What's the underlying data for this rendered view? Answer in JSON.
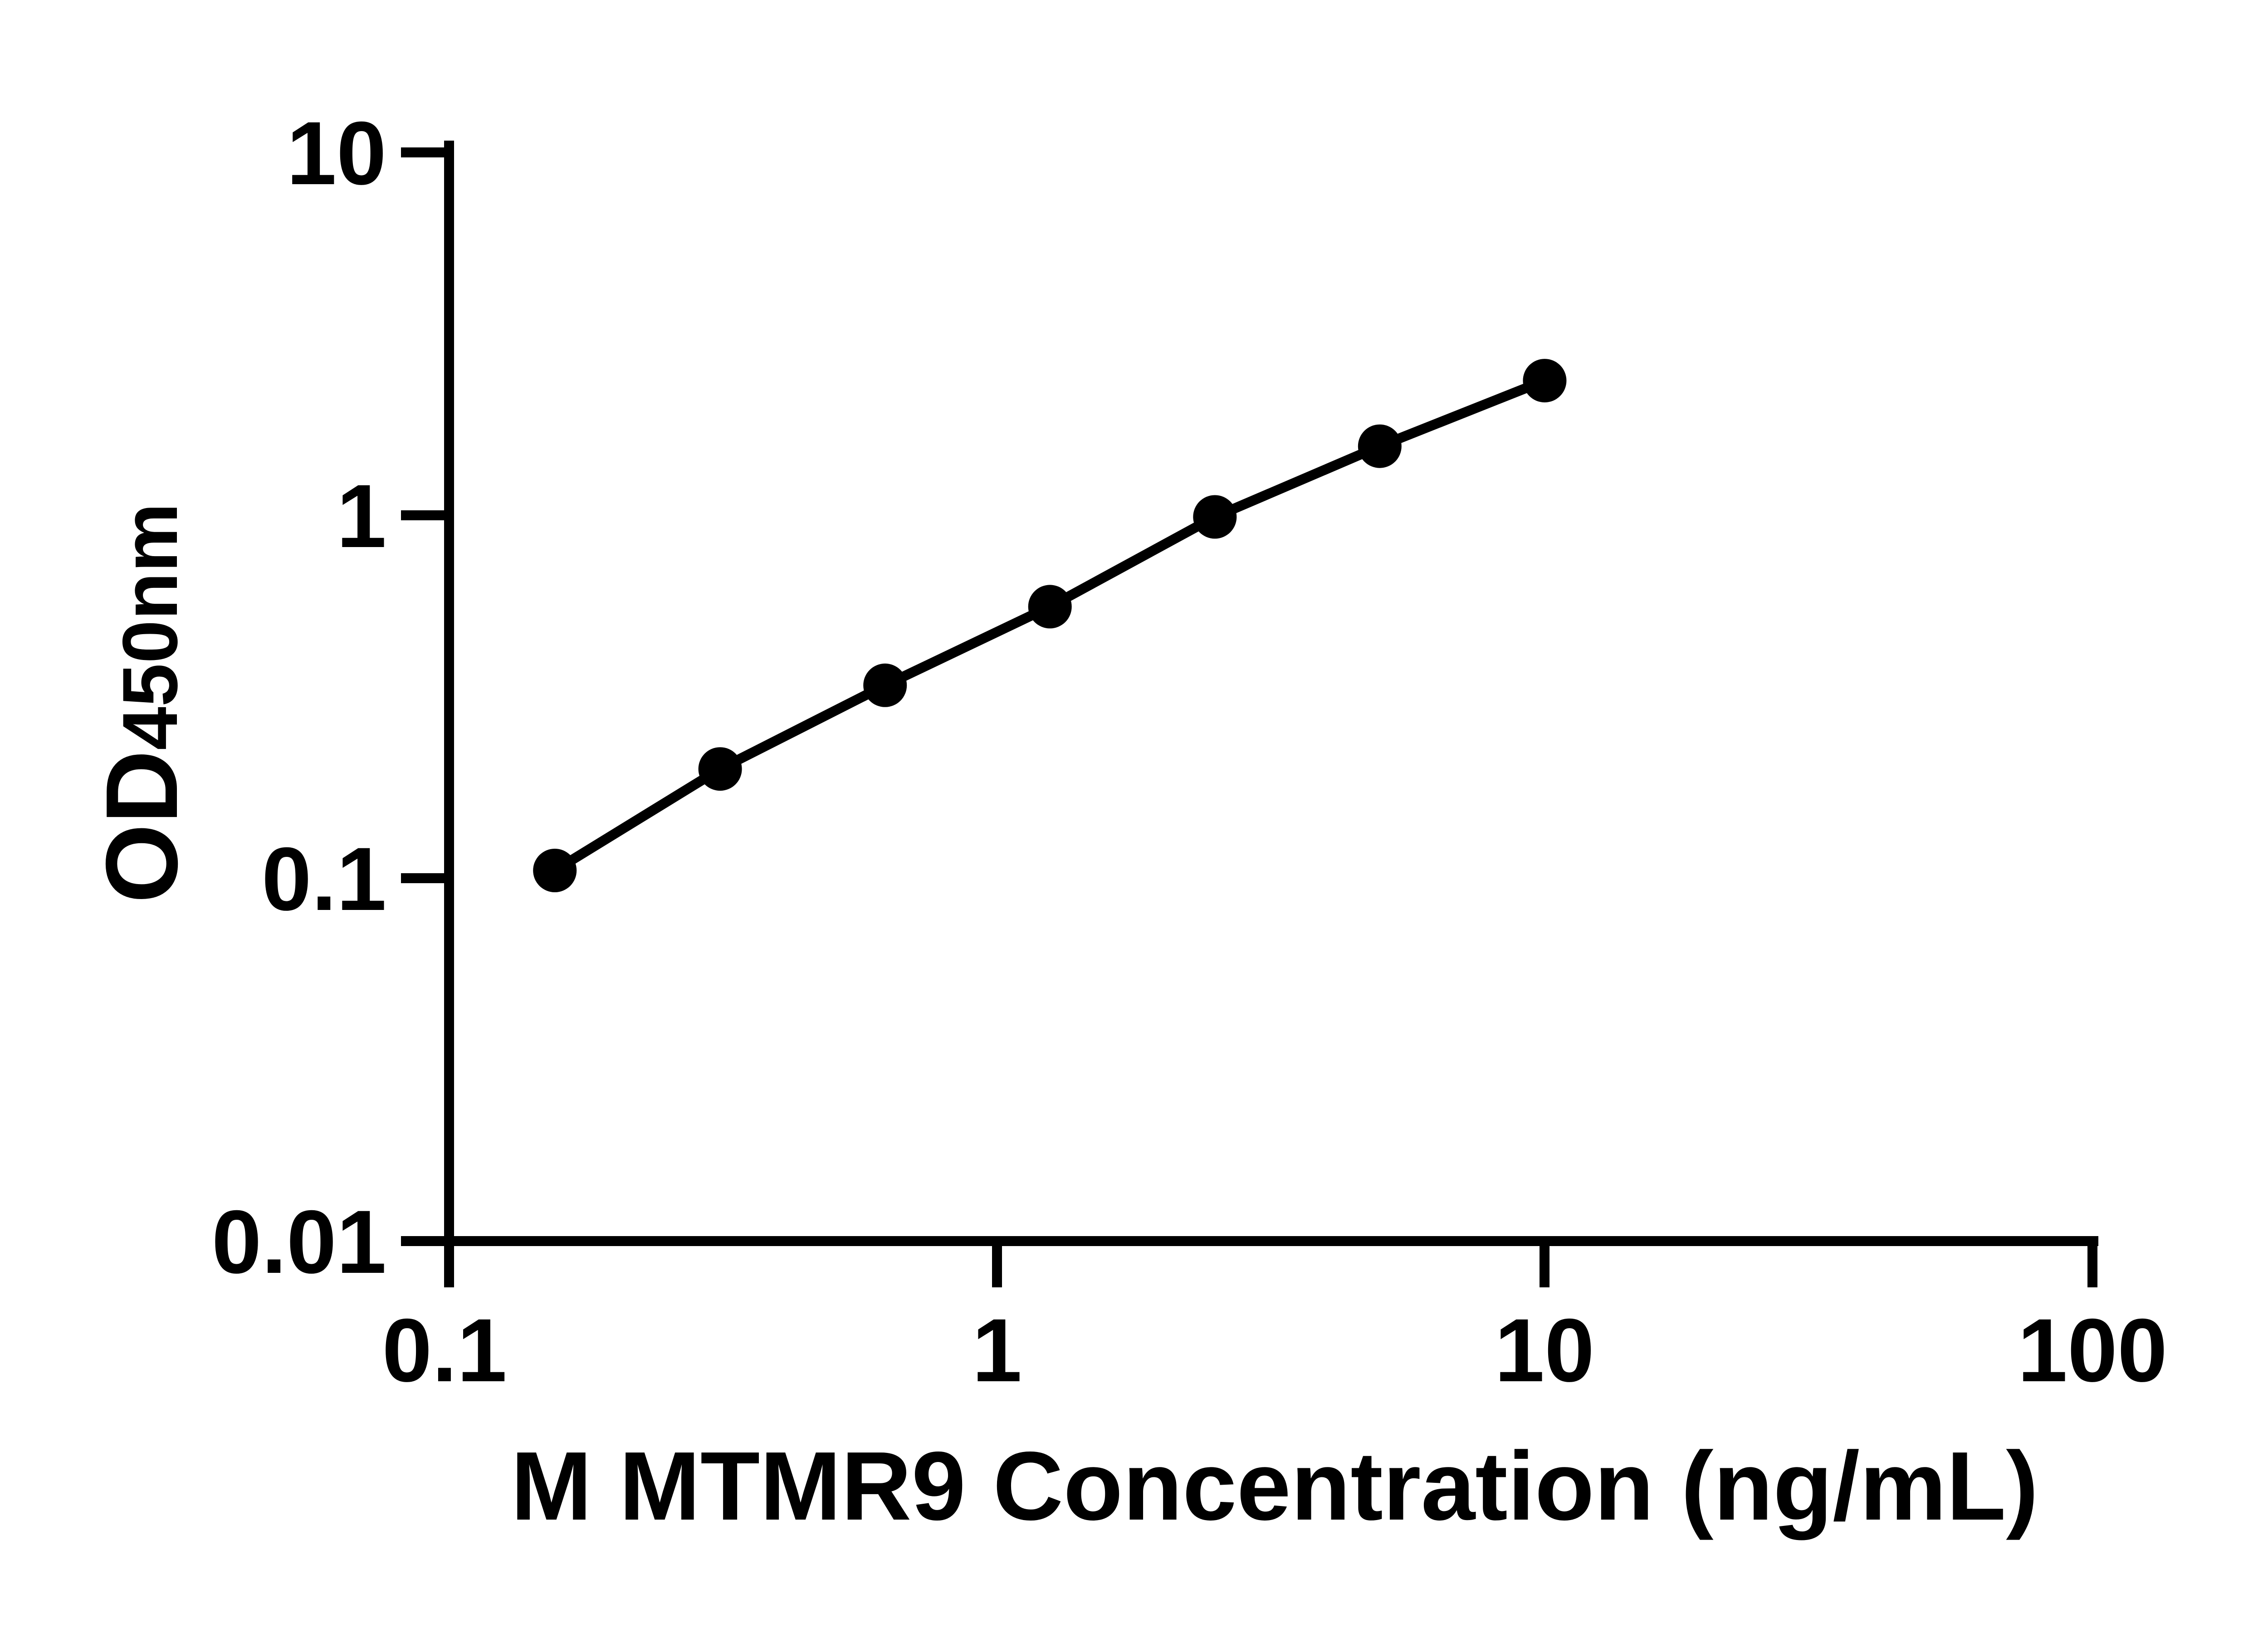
{
  "figure": {
    "background": "#ffffff",
    "ink_color": "#000000"
  },
  "chart_data": {
    "type": "line",
    "title": "",
    "xlabel": "M MTMR9 Concentration (ng/mL)",
    "ylabel": "OD450nm",
    "ylabel_main": "OD",
    "ylabel_sub": "450nm",
    "x_scale": "log10",
    "y_scale": "log10",
    "xlim": [
      0.1,
      100
    ],
    "ylim": [
      0.01,
      10
    ],
    "x_ticks": [
      0.1,
      1,
      10,
      100
    ],
    "x_tick_labels": [
      "0.1",
      "1",
      "10",
      "100"
    ],
    "y_ticks": [
      10,
      1,
      0.1,
      0.01
    ],
    "y_tick_labels": [
      "10",
      "1",
      "0.1",
      "0.01"
    ],
    "grid": false,
    "legend": false,
    "marker": "filled-circle",
    "line_color": "#000000",
    "marker_color": "#000000",
    "series": [
      {
        "x": [
          0.156,
          0.3125,
          0.625,
          1.25,
          2.5,
          5,
          10
        ],
        "y": [
          0.105,
          0.2,
          0.34,
          0.56,
          0.99,
          1.55,
          2.35
        ]
      }
    ]
  }
}
